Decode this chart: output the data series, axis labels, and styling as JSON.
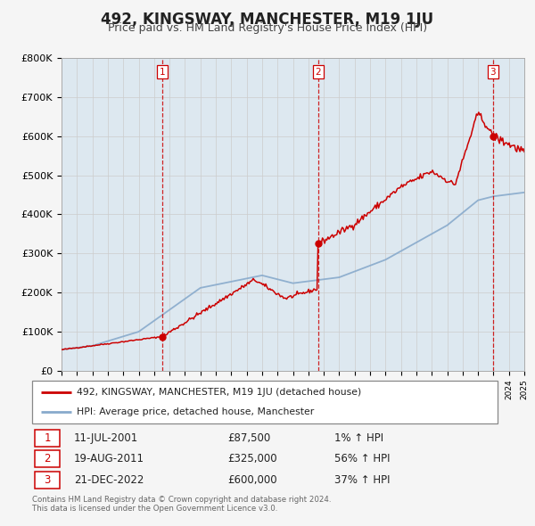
{
  "title": "492, KINGSWAY, MANCHESTER, M19 1JU",
  "subtitle": "Price paid vs. HM Land Registry's House Price Index (HPI)",
  "ylim": [
    0,
    800000
  ],
  "yticks": [
    0,
    100000,
    200000,
    300000,
    400000,
    500000,
    600000,
    700000,
    800000
  ],
  "ytick_labels": [
    "£0",
    "£100K",
    "£200K",
    "£300K",
    "£400K",
    "£500K",
    "£600K",
    "£700K",
    "£800K"
  ],
  "x_start_year": 1995,
  "x_end_year": 2025,
  "legend_line1": "492, KINGSWAY, MANCHESTER, M19 1JU (detached house)",
  "legend_line2": "HPI: Average price, detached house, Manchester",
  "sale1_date": "11-JUL-2001",
  "sale1_price": "£87,500",
  "sale1_hpi": "1% ↑ HPI",
  "sale1_year": 2001.53,
  "sale1_value": 87500,
  "sale2_date": "19-AUG-2011",
  "sale2_price": "£325,000",
  "sale2_hpi": "56% ↑ HPI",
  "sale2_year": 2011.63,
  "sale2_value": 325000,
  "sale3_date": "21-DEC-2022",
  "sale3_price": "£600,000",
  "sale3_hpi": "37% ↑ HPI",
  "sale3_year": 2022.97,
  "sale3_value": 600000,
  "red_line_color": "#cc0000",
  "blue_line_color": "#88aacc",
  "grid_color": "#cccccc",
  "plot_bg_color": "#ffffff",
  "dashed_line_color": "#cc0000",
  "shade_color": "#dde8f0",
  "footer_text": "Contains HM Land Registry data © Crown copyright and database right 2024.\nThis data is licensed under the Open Government Licence v3.0.",
  "title_fontsize": 12,
  "subtitle_fontsize": 9
}
